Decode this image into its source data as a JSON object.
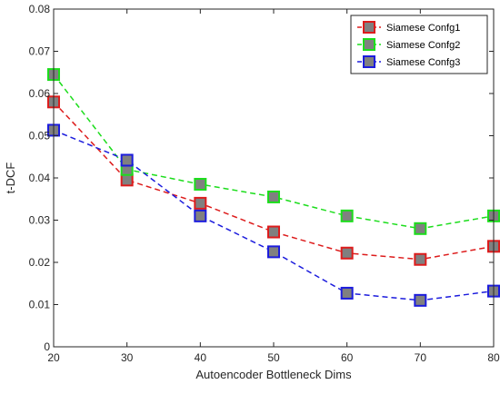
{
  "chart_data": {
    "type": "line",
    "xlabel": "Autoencoder Bottleneck Dims",
    "ylabel": "t-DCF",
    "xlim": [
      20,
      80
    ],
    "ylim": [
      0,
      0.08
    ],
    "xticks": [
      20,
      30,
      40,
      50,
      60,
      70,
      80
    ],
    "yticks": [
      0,
      0.01,
      0.02,
      0.03,
      0.04,
      0.05,
      0.06,
      0.07,
      0.08
    ],
    "xtick_labels": [
      "20",
      "30",
      "40",
      "50",
      "60",
      "70",
      "80"
    ],
    "ytick_labels": [
      "0",
      "0.01",
      "0.02",
      "0.03",
      "0.04",
      "0.05",
      "0.06",
      "0.07",
      "0.08"
    ],
    "grid": false,
    "legend_position": "top-right",
    "line_style": "dashed",
    "marker": "square",
    "marker_fill": "#808080",
    "x": [
      20,
      30,
      40,
      50,
      60,
      70,
      80
    ],
    "series": [
      {
        "name": "Siamese Confg1",
        "color": "#dd1c1c",
        "values": [
          0.058,
          0.0395,
          0.034,
          0.0272,
          0.0222,
          0.0207,
          0.0238
        ]
      },
      {
        "name": "Siamese Confg2",
        "color": "#1cdd1c",
        "values": [
          0.0645,
          0.042,
          0.0385,
          0.0355,
          0.031,
          0.028,
          0.031
        ]
      },
      {
        "name": "Siamese Confg3",
        "color": "#1c1cdd",
        "values": [
          0.0513,
          0.0442,
          0.031,
          0.0225,
          0.0127,
          0.011,
          0.0132
        ]
      }
    ]
  }
}
